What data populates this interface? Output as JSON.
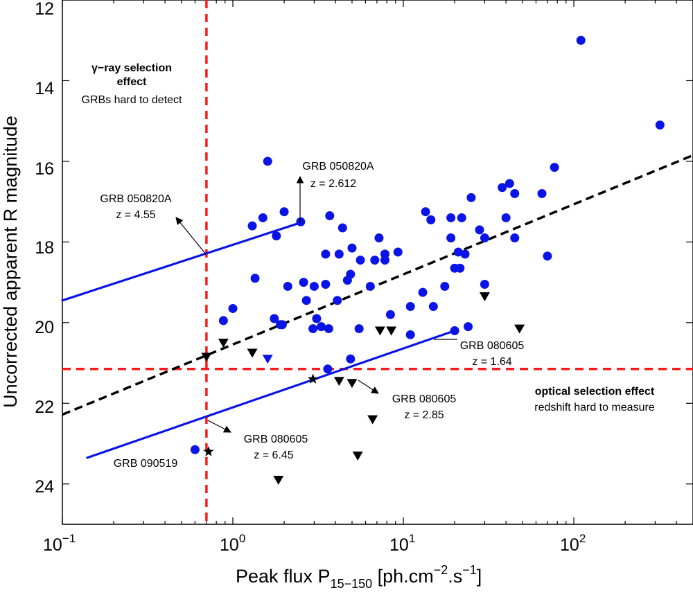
{
  "chart_data": {
    "type": "scatter",
    "xscale": "log",
    "xlim": [
      0.1,
      500
    ],
    "ylim": [
      25,
      12
    ],
    "y_inverted": true,
    "xlabel": {
      "main": "Peak flux P",
      "sub": "15−150",
      "after": " [ph.cm",
      "sup1": "−2",
      "mid": ".s",
      "sup2": "−1",
      "end": "]"
    },
    "ylabel": "Uncorrected apparent R magnitude",
    "x_ticks": [
      {
        "base": "10",
        "exp": "−1",
        "value": 0.1
      },
      {
        "base": "10",
        "exp": "0",
        "value": 1
      },
      {
        "base": "10",
        "exp": "1",
        "value": 10
      },
      {
        "base": "10",
        "exp": "2",
        "value": 100
      }
    ],
    "y_ticks": [
      {
        "label": "12",
        "value": 12
      },
      {
        "label": "14",
        "value": 14
      },
      {
        "label": "16",
        "value": 16
      },
      {
        "label": "18",
        "value": 18
      },
      {
        "label": "20",
        "value": 20
      },
      {
        "label": "22",
        "value": 22
      },
      {
        "label": "24",
        "value": 24
      }
    ],
    "colors": {
      "detections": "#0a14e6",
      "upper_limits": "#000000",
      "selection": "#ff1a1a",
      "fit": "#000000",
      "track": "#0a14e6"
    },
    "series": [
      {
        "name": "detections",
        "marker": "circle",
        "points": [
          [
            110,
            13.0
          ],
          [
            320,
            15.1
          ],
          [
            1.6,
            16.0
          ],
          [
            77,
            16.15
          ],
          [
            2.5,
            17.5
          ],
          [
            3.7,
            17.35
          ],
          [
            1.3,
            17.6
          ],
          [
            1.5,
            17.4
          ],
          [
            2.0,
            17.25
          ],
          [
            1.8,
            17.85
          ],
          [
            4.4,
            17.65
          ],
          [
            13.5,
            17.25
          ],
          [
            14.5,
            17.45
          ],
          [
            19,
            17.4
          ],
          [
            22,
            17.4
          ],
          [
            25,
            16.9
          ],
          [
            38,
            16.65
          ],
          [
            42,
            16.55
          ],
          [
            45,
            16.8
          ],
          [
            65,
            16.8
          ],
          [
            40,
            17.4
          ],
          [
            7.2,
            17.9
          ],
          [
            28,
            17.7
          ],
          [
            30,
            17.9
          ],
          [
            45,
            17.9
          ],
          [
            19,
            17.9
          ],
          [
            3.5,
            18.3
          ],
          [
            4.2,
            18.3
          ],
          [
            5.0,
            18.15
          ],
          [
            5.6,
            18.45
          ],
          [
            6.8,
            18.45
          ],
          [
            7.8,
            18.3
          ],
          [
            7.8,
            18.45
          ],
          [
            9.3,
            18.25
          ],
          [
            20,
            18.65
          ],
          [
            21,
            18.25
          ],
          [
            21.5,
            18.65
          ],
          [
            23,
            18.3
          ],
          [
            70,
            18.35
          ],
          [
            1.35,
            18.9
          ],
          [
            2.1,
            19.1
          ],
          [
            2.6,
            19.0
          ],
          [
            3.0,
            19.1
          ],
          [
            3.5,
            19.05
          ],
          [
            4.1,
            19.45
          ],
          [
            4.7,
            18.95
          ],
          [
            4.9,
            18.8
          ],
          [
            6.4,
            19.1
          ],
          [
            11,
            19.6
          ],
          [
            13,
            19.25
          ],
          [
            15,
            19.6
          ],
          [
            17.5,
            19.1
          ],
          [
            30,
            19.05
          ],
          [
            2.7,
            19.45
          ],
          [
            1.0,
            19.65
          ],
          [
            0.88,
            19.95
          ],
          [
            1.75,
            19.9
          ],
          [
            1.9,
            20.05
          ],
          [
            1.95,
            20.05
          ],
          [
            3.1,
            19.9
          ],
          [
            3.3,
            20.1
          ],
          [
            3.65,
            20.15
          ],
          [
            2.95,
            20.15
          ],
          [
            5.5,
            20.15
          ],
          [
            8.4,
            19.8
          ],
          [
            11,
            20.3
          ],
          [
            20,
            20.2
          ],
          [
            24,
            20.1
          ],
          [
            4.9,
            20.9
          ],
          [
            3.6,
            21.15
          ],
          [
            0.6,
            23.15
          ]
        ]
      },
      {
        "name": "upper-limit-blue",
        "marker": "triangle",
        "points": [
          [
            1.6,
            20.9
          ]
        ]
      },
      {
        "name": "upper-limits",
        "marker": "triangle",
        "points": [
          [
            0.7,
            20.85
          ],
          [
            0.88,
            20.5
          ],
          [
            1.3,
            20.75
          ],
          [
            7.3,
            20.2
          ],
          [
            8.5,
            20.2
          ],
          [
            30,
            19.35
          ],
          [
            48,
            20.15
          ],
          [
            4.2,
            21.45
          ],
          [
            5.0,
            21.5
          ],
          [
            6.6,
            22.4
          ],
          [
            5.4,
            23.3
          ],
          [
            1.85,
            23.9
          ]
        ]
      },
      {
        "name": "stars",
        "marker": "star",
        "points": [
          [
            2.95,
            21.4
          ],
          [
            0.72,
            23.2
          ]
        ]
      }
    ],
    "lines": [
      {
        "name": "gamma-ray-threshold",
        "orientation": "vertical",
        "x": 0.7
      },
      {
        "name": "optical-threshold",
        "orientation": "horizontal",
        "y": 21.15
      },
      {
        "name": "trend-fit",
        "from": [
          0.1,
          22.28
        ],
        "to": [
          500,
          15.85
        ]
      },
      {
        "name": "track-050820A",
        "from": [
          0.1,
          19.45
        ],
        "to": [
          2.5,
          17.52
        ]
      },
      {
        "name": "track-080605",
        "from": [
          0.14,
          23.35
        ],
        "to": [
          20,
          20.2
        ]
      }
    ],
    "annotations": {
      "gamma_title_1": "γ−ray selection",
      "gamma_title_2": "effect",
      "gamma_sub": "GRBs hard to detect",
      "optical_title": "optical selection effect",
      "optical_sub": "redshift hard to measure",
      "grb050820a_low_name": "GRB 050820A",
      "grb050820a_low_z": "z = 2.612",
      "grb050820a_high_name": "GRB 050820A",
      "grb050820a_high_z": "z = 4.55",
      "grb080605_a_name": "GRB 080605",
      "grb080605_a_z": "z = 1.64",
      "grb080605_b_name": "GRB 080605",
      "grb080605_b_z": "z = 2.85",
      "grb080605_c_name": "GRB 080605",
      "grb080605_c_z": "z = 6.45",
      "grb090519_name": "GRB 090519"
    }
  }
}
